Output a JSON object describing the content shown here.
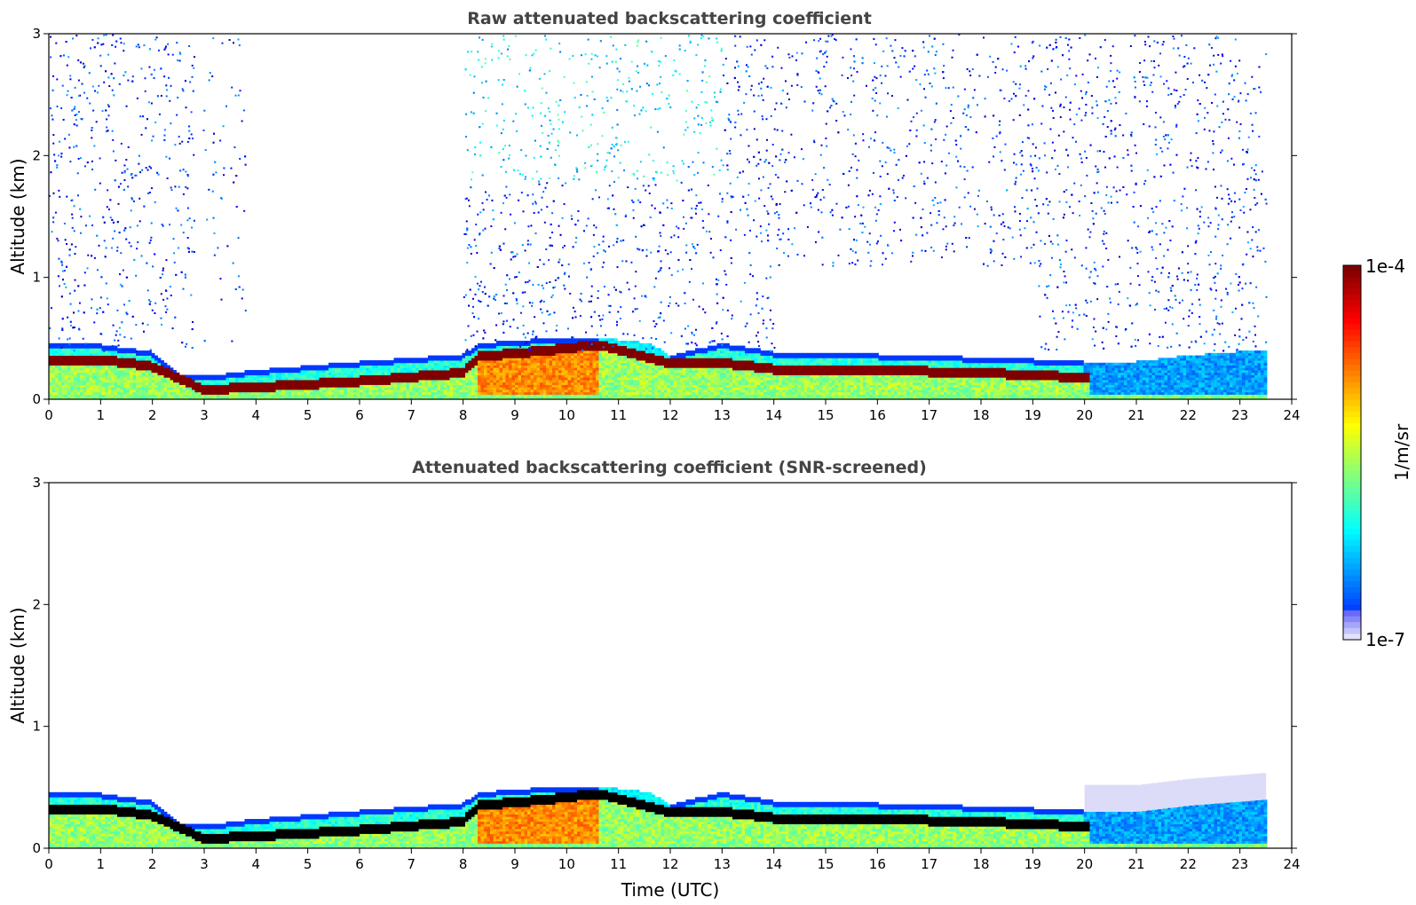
{
  "chart_data": [
    {
      "type": "heatmap",
      "title": "Raw attenuated backscattering coefficient",
      "xlabel": "",
      "ylabel": "Altitude (km)",
      "xlim": [
        0,
        24
      ],
      "ylim": [
        0,
        3
      ],
      "xticks": [
        "0",
        "1",
        "2",
        "3",
        "4",
        "5",
        "6",
        "7",
        "8",
        "9",
        "10",
        "11",
        "12",
        "13",
        "14",
        "15",
        "16",
        "17",
        "18",
        "19",
        "20",
        "21",
        "22",
        "23",
        "24"
      ],
      "yticks": [
        "0",
        "1",
        "2",
        "3"
      ],
      "screened": false,
      "layers": [
        {
          "name": "boundary-layer-top",
          "t": [
            0,
            1,
            2,
            2.5,
            3,
            4,
            6,
            8,
            8.3,
            10,
            10.6,
            11.6,
            12,
            13,
            14,
            15,
            17,
            19,
            20,
            21,
            22,
            23.5
          ],
          "top_km": [
            0.45,
            0.44,
            0.38,
            0.2,
            0.18,
            0.23,
            0.3,
            0.36,
            0.45,
            0.5,
            0.5,
            0.45,
            0.35,
            0.45,
            0.38,
            0.37,
            0.35,
            0.32,
            0.3,
            0.3,
            0.35,
            0.4
          ]
        },
        {
          "name": "strong-layer",
          "t": [
            0,
            1,
            2,
            3,
            4,
            6,
            8,
            8.3,
            10,
            10.6,
            12,
            13,
            14,
            16,
            18,
            20
          ],
          "km": [
            0.32,
            0.33,
            0.27,
            0.08,
            0.1,
            0.15,
            0.22,
            0.35,
            0.42,
            0.45,
            0.3,
            0.3,
            0.25,
            0.24,
            0.22,
            0.18
          ]
        }
      ]
    },
    {
      "type": "heatmap",
      "title": "Attenuated backscattering coefficient (SNR-screened)",
      "xlabel": "Time (UTC)",
      "ylabel": "Altitude (km)",
      "xlim": [
        0,
        24
      ],
      "ylim": [
        0,
        3
      ],
      "xticks": [
        "0",
        "1",
        "2",
        "3",
        "4",
        "5",
        "6",
        "7",
        "8",
        "9",
        "10",
        "11",
        "12",
        "13",
        "14",
        "15",
        "16",
        "17",
        "18",
        "19",
        "20",
        "21",
        "22",
        "23",
        "24"
      ],
      "yticks": [
        "0",
        "1",
        "2",
        "3"
      ],
      "screened": true
    }
  ],
  "colorbar": {
    "label": "1/m/sr",
    "max_label": "1e-4",
    "min_label": "1e-7",
    "scale": "log",
    "range": [
      1e-07,
      0.0001
    ]
  }
}
